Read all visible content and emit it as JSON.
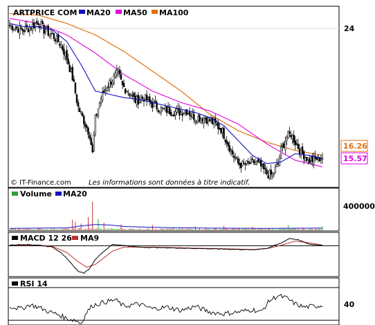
{
  "chart_data": [
    {
      "type": "candlestick",
      "panel": "price",
      "title": "ARTPRICE COM",
      "legend": [
        {
          "name": "MA20",
          "color": "#1010c0"
        },
        {
          "name": "MA50",
          "color": "#e000e0"
        },
        {
          "name": "MA100",
          "color": "#e07010"
        }
      ],
      "ylim": [
        14.4,
        25.3
      ],
      "y_ticks": [
        {
          "value": 24,
          "label": "24"
        }
      ],
      "last_values": [
        {
          "series": "MA100",
          "value": 16.26,
          "label": "16.26",
          "color": "#e07010"
        },
        {
          "series": "MA50",
          "value": 15.57,
          "label": "15.57",
          "color": "#e000e0"
        }
      ],
      "close_anchors": [
        [
          0,
          24.2
        ],
        [
          5,
          24.0
        ],
        [
          10,
          23.9
        ],
        [
          15,
          24.1
        ],
        [
          20,
          24.4
        ],
        [
          24,
          23.9
        ],
        [
          30,
          23.6
        ],
        [
          36,
          23.0
        ],
        [
          40,
          22.2
        ],
        [
          44,
          21.0
        ],
        [
          48,
          19.2
        ],
        [
          52,
          18.4
        ],
        [
          56,
          17.6
        ],
        [
          58,
          16.4
        ],
        [
          60,
          18.5
        ],
        [
          64,
          19.8
        ],
        [
          68,
          20.5
        ],
        [
          72,
          20.9
        ],
        [
          76,
          21.3
        ],
        [
          79,
          20.5
        ],
        [
          84,
          20.1
        ],
        [
          88,
          19.6
        ],
        [
          94,
          19.8
        ],
        [
          100,
          19.4
        ],
        [
          106,
          19.1
        ],
        [
          112,
          19.0
        ],
        [
          118,
          18.9
        ],
        [
          124,
          19.0
        ],
        [
          130,
          18.6
        ],
        [
          136,
          18.6
        ],
        [
          142,
          18.3
        ],
        [
          148,
          17.9
        ],
        [
          152,
          17.2
        ],
        [
          156,
          16.4
        ],
        [
          160,
          15.8
        ],
        [
          164,
          15.7
        ],
        [
          168,
          15.8
        ],
        [
          172,
          15.9
        ],
        [
          176,
          15.6
        ],
        [
          180,
          15.2
        ],
        [
          184,
          15.1
        ],
        [
          188,
          15.8
        ],
        [
          190,
          16.6
        ],
        [
          194,
          17.4
        ],
        [
          197,
          17.6
        ],
        [
          200,
          17.1
        ],
        [
          204,
          16.5
        ],
        [
          210,
          16.0
        ],
        [
          216,
          16.1
        ],
        [
          219,
          16.2
        ]
      ],
      "ma20_anchors": [
        [
          0,
          24.3
        ],
        [
          10,
          24.1
        ],
        [
          20,
          24.1
        ],
        [
          30,
          23.9
        ],
        [
          40,
          23.2
        ],
        [
          50,
          21.8
        ],
        [
          60,
          20.2
        ],
        [
          70,
          20.0
        ],
        [
          80,
          19.8
        ],
        [
          90,
          19.7
        ],
        [
          100,
          19.5
        ],
        [
          110,
          19.3
        ],
        [
          120,
          19.1
        ],
        [
          130,
          18.9
        ],
        [
          140,
          18.6
        ],
        [
          150,
          18.1
        ],
        [
          160,
          17.2
        ],
        [
          170,
          16.3
        ],
        [
          180,
          15.8
        ],
        [
          190,
          15.9
        ],
        [
          200,
          16.4
        ],
        [
          210,
          16.3
        ],
        [
          219,
          16.1
        ]
      ],
      "ma50_anchors": [
        [
          0,
          24.6
        ],
        [
          20,
          24.3
        ],
        [
          40,
          23.6
        ],
        [
          60,
          22.5
        ],
        [
          80,
          21.2
        ],
        [
          100,
          20.2
        ],
        [
          120,
          19.5
        ],
        [
          140,
          19.0
        ],
        [
          160,
          18.2
        ],
        [
          180,
          17.0
        ],
        [
          200,
          16.0
        ],
        [
          210,
          15.8
        ],
        [
          219,
          15.6
        ]
      ],
      "ma100_anchors": [
        [
          0,
          24.9
        ],
        [
          20,
          24.8
        ],
        [
          40,
          24.3
        ],
        [
          60,
          23.6
        ],
        [
          80,
          22.6
        ],
        [
          100,
          21.4
        ],
        [
          120,
          20.2
        ],
        [
          140,
          18.8
        ],
        [
          160,
          17.8
        ],
        [
          180,
          17.1
        ],
        [
          200,
          16.6
        ],
        [
          219,
          16.3
        ]
      ]
    },
    {
      "type": "bar",
      "panel": "volume",
      "legend": [
        {
          "name": "Volume",
          "color": "#30a030"
        },
        {
          "name": "MA20",
          "color": "#1010c0"
        }
      ],
      "ylim": [
        0,
        650000
      ],
      "y_ticks": [
        {
          "value": 400000,
          "label": "400000"
        }
      ],
      "spikes": [
        [
          44,
          220000
        ],
        [
          46,
          180000
        ],
        [
          50,
          140000
        ],
        [
          55,
          270000
        ],
        [
          58,
          600000
        ],
        [
          62,
          230000
        ],
        [
          66,
          160000
        ],
        [
          78,
          120000
        ],
        [
          100,
          110000
        ],
        [
          130,
          80000
        ],
        [
          150,
          90000
        ],
        [
          170,
          70000
        ],
        [
          195,
          110000
        ],
        [
          219,
          80000
        ]
      ],
      "base_volume": 25000,
      "ma20_anchors": [
        [
          0,
          40000
        ],
        [
          40,
          50000
        ],
        [
          50,
          90000
        ],
        [
          60,
          120000
        ],
        [
          70,
          110000
        ],
        [
          80,
          80000
        ],
        [
          100,
          60000
        ],
        [
          140,
          45000
        ],
        [
          180,
          40000
        ],
        [
          219,
          45000
        ]
      ]
    },
    {
      "type": "line",
      "panel": "macd",
      "legend": [
        {
          "name": "MACD 12 26",
          "color": "#000000"
        },
        {
          "name": "MA9",
          "color": "#c03030"
        }
      ],
      "ylim": [
        -2.2,
        0.9
      ],
      "macd_anchors": [
        [
          0,
          0.05
        ],
        [
          10,
          0.1
        ],
        [
          20,
          0.05
        ],
        [
          30,
          -0.1
        ],
        [
          36,
          -0.5
        ],
        [
          42,
          -1.2
        ],
        [
          48,
          -1.9
        ],
        [
          52,
          -2.05
        ],
        [
          56,
          -1.7
        ],
        [
          60,
          -1.0
        ],
        [
          66,
          -0.4
        ],
        [
          72,
          0.1
        ],
        [
          78,
          0.05
        ],
        [
          90,
          -0.1
        ],
        [
          110,
          -0.15
        ],
        [
          130,
          -0.2
        ],
        [
          150,
          -0.25
        ],
        [
          170,
          -0.3
        ],
        [
          180,
          -0.2
        ],
        [
          190,
          0.2
        ],
        [
          196,
          0.55
        ],
        [
          202,
          0.45
        ],
        [
          210,
          0.1
        ],
        [
          219,
          0.05
        ]
      ],
      "ma9_anchors": [
        [
          0,
          0.05
        ],
        [
          20,
          0.05
        ],
        [
          30,
          -0.05
        ],
        [
          40,
          -0.5
        ],
        [
          48,
          -1.2
        ],
        [
          54,
          -1.6
        ],
        [
          60,
          -1.4
        ],
        [
          66,
          -0.9
        ],
        [
          72,
          -0.4
        ],
        [
          80,
          -0.1
        ],
        [
          100,
          -0.1
        ],
        [
          130,
          -0.18
        ],
        [
          150,
          -0.22
        ],
        [
          170,
          -0.28
        ],
        [
          182,
          -0.18
        ],
        [
          192,
          0.1
        ],
        [
          200,
          0.35
        ],
        [
          208,
          0.25
        ],
        [
          219,
          0.05
        ]
      ]
    },
    {
      "type": "line",
      "panel": "rsi",
      "legend": [
        {
          "name": "RSI 14",
          "color": "#000000"
        }
      ],
      "ylim": [
        25,
        80
      ],
      "y_ticks": [
        {
          "value": 40,
          "label": "40"
        }
      ],
      "anchors": [
        [
          0,
          47
        ],
        [
          8,
          44
        ],
        [
          14,
          49
        ],
        [
          20,
          46
        ],
        [
          28,
          40
        ],
        [
          34,
          37
        ],
        [
          40,
          32
        ],
        [
          46,
          30
        ],
        [
          50,
          26
        ],
        [
          54,
          40
        ],
        [
          58,
          48
        ],
        [
          66,
          52
        ],
        [
          74,
          55
        ],
        [
          80,
          47
        ],
        [
          90,
          50
        ],
        [
          100,
          44
        ],
        [
          110,
          46
        ],
        [
          120,
          42
        ],
        [
          130,
          47
        ],
        [
          140,
          40
        ],
        [
          150,
          38
        ],
        [
          160,
          40
        ],
        [
          170,
          43
        ],
        [
          176,
          40
        ],
        [
          182,
          54
        ],
        [
          188,
          60
        ],
        [
          194,
          57
        ],
        [
          200,
          50
        ],
        [
          206,
          46
        ],
        [
          212,
          47
        ],
        [
          219,
          48
        ]
      ]
    }
  ],
  "credit": {
    "left": "© IT-Finance.com",
    "right": "Les informations sont données à titre indicatif."
  }
}
